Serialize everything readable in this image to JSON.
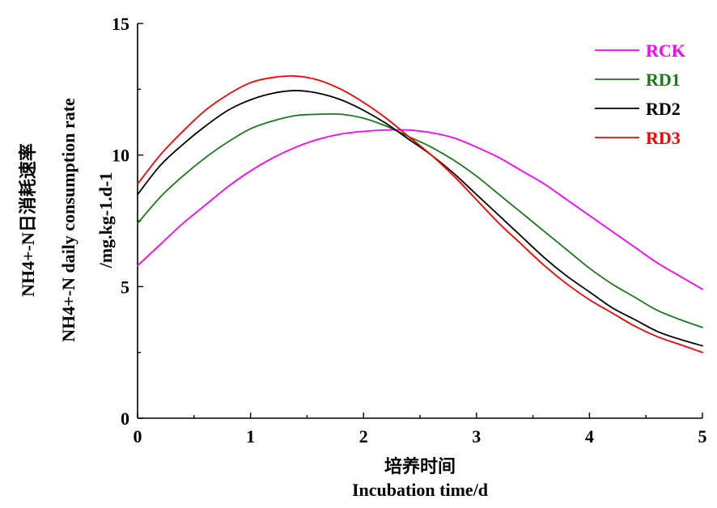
{
  "chart_data": {
    "type": "line",
    "xlabel_cn": "培养时间",
    "xlabel_en": "Incubation time/d",
    "ylabel_cn": "NH4+-N日消耗速率",
    "ylabel_en": "NH4+-N daily consumption rate",
    "ylabel_unit": "/mg.kg-1.d-1",
    "xlim": [
      0,
      5
    ],
    "ylim": [
      0,
      15
    ],
    "x_ticks": [
      "0",
      "1",
      "2",
      "3",
      "4",
      "5"
    ],
    "y_ticks": [
      "0",
      "5",
      "10",
      "15"
    ],
    "legend_position": "top-right",
    "grid": false,
    "x": [
      0,
      0.2,
      0.4,
      0.6,
      0.8,
      1.0,
      1.2,
      1.4,
      1.6,
      1.8,
      2.0,
      2.2,
      2.4,
      2.6,
      2.8,
      3.0,
      3.2,
      3.4,
      3.6,
      3.8,
      4.0,
      4.2,
      4.4,
      4.6,
      4.8,
      5.0
    ],
    "series": [
      {
        "name": "RCK",
        "color": "#ff00ff",
        "values": [
          5.8,
          6.6,
          7.4,
          8.1,
          8.8,
          9.4,
          9.9,
          10.3,
          10.6,
          10.8,
          10.9,
          10.95,
          10.95,
          10.85,
          10.65,
          10.3,
          9.9,
          9.4,
          8.9,
          8.3,
          7.7,
          7.1,
          6.5,
          5.9,
          5.4,
          4.9
        ]
      },
      {
        "name": "RD1",
        "color": "#1a7a1a",
        "values": [
          7.4,
          8.4,
          9.2,
          9.9,
          10.5,
          11.0,
          11.3,
          11.5,
          11.55,
          11.55,
          11.4,
          11.1,
          10.7,
          10.3,
          9.8,
          9.2,
          8.5,
          7.8,
          7.1,
          6.4,
          5.7,
          5.1,
          4.6,
          4.1,
          3.75,
          3.45
        ]
      },
      {
        "name": "RD2",
        "color": "#000000",
        "values": [
          8.5,
          9.6,
          10.4,
          11.1,
          11.7,
          12.1,
          12.35,
          12.45,
          12.35,
          12.1,
          11.7,
          11.2,
          10.6,
          10.0,
          9.3,
          8.5,
          7.7,
          6.9,
          6.1,
          5.4,
          4.8,
          4.2,
          3.75,
          3.3,
          3.0,
          2.75
        ]
      },
      {
        "name": "RD3",
        "color": "#ff0000",
        "values": [
          8.9,
          10.0,
          10.9,
          11.7,
          12.3,
          12.75,
          12.95,
          13.0,
          12.85,
          12.5,
          12.0,
          11.4,
          10.7,
          10.0,
          9.2,
          8.3,
          7.4,
          6.6,
          5.8,
          5.1,
          4.5,
          4.0,
          3.5,
          3.1,
          2.8,
          2.5
        ]
      }
    ],
    "legend": [
      {
        "label": "RCK",
        "color": "#ff00ff"
      },
      {
        "label": "RD1",
        "color": "#1a7a1a"
      },
      {
        "label": "RD2",
        "color": "#000000"
      },
      {
        "label": "RD3",
        "color": "#ff0000"
      }
    ]
  }
}
